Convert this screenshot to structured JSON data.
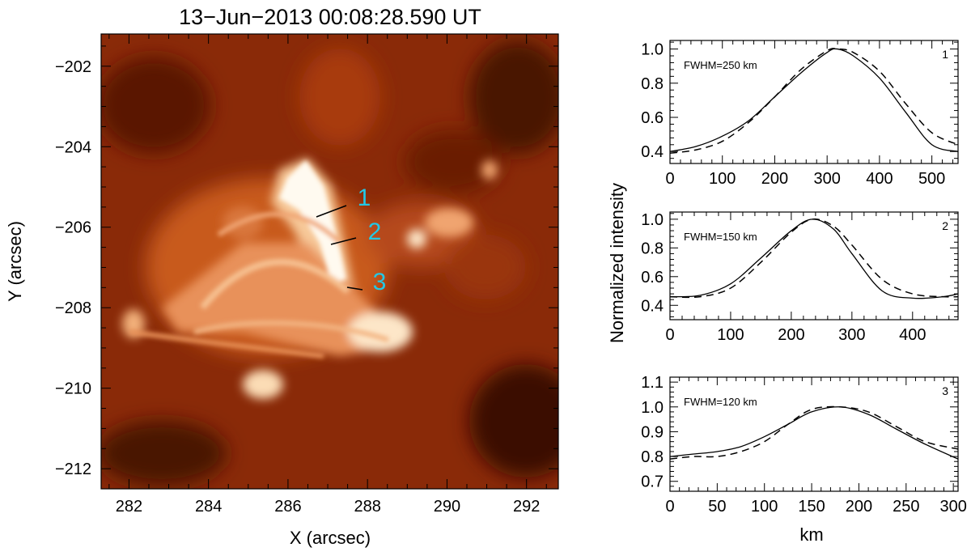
{
  "image_panel": {
    "title": "13−Jun−2013 00:08:28.590 UT",
    "xlabel": "X (arcsec)",
    "ylabel": "Y (arcsec)",
    "xlim": [
      281.3,
      292.8
    ],
    "ylim": [
      -212.5,
      -201.2
    ],
    "x_ticks": [
      "282",
      "284",
      "286",
      "288",
      "290",
      "292"
    ],
    "y_ticks": [
      "−202",
      "−204",
      "−206",
      "−208",
      "−210",
      "−212"
    ],
    "colormap": "red-temperature",
    "slit_labels": [
      "1",
      "2",
      "3"
    ],
    "slit_label_color": "#22c8e6"
  },
  "shared_ylabel": "Normalized intensity",
  "shared_xlabel": "km",
  "chart_data": [
    {
      "type": "line",
      "panel_number": "1",
      "annotation": "FWHM=250 km",
      "xlim": [
        0,
        550
      ],
      "ylim": [
        0.33,
        1.05
      ],
      "x_ticks": [
        "0",
        "100",
        "200",
        "300",
        "400",
        "500"
      ],
      "y_ticks": [
        "0.4",
        "0.6",
        "0.8",
        "1.0"
      ],
      "series": [
        {
          "style": "solid",
          "x": [
            0,
            50,
            100,
            150,
            200,
            250,
            300,
            320,
            350,
            400,
            450,
            500,
            550
          ],
          "y": [
            0.4,
            0.43,
            0.49,
            0.58,
            0.72,
            0.86,
            0.98,
            1.0,
            0.96,
            0.83,
            0.63,
            0.44,
            0.4
          ]
        },
        {
          "style": "dashed",
          "x": [
            0,
            50,
            100,
            150,
            200,
            250,
            300,
            320,
            350,
            400,
            450,
            500,
            550
          ],
          "y": [
            0.39,
            0.41,
            0.46,
            0.57,
            0.72,
            0.88,
            0.99,
            1.0,
            0.98,
            0.87,
            0.68,
            0.51,
            0.44
          ]
        }
      ]
    },
    {
      "type": "line",
      "panel_number": "2",
      "annotation": "FWHM=150 km",
      "xlim": [
        0,
        475
      ],
      "ylim": [
        0.3,
        1.05
      ],
      "x_ticks": [
        "0",
        "100",
        "200",
        "300",
        "400"
      ],
      "y_ticks": [
        "0.4",
        "0.6",
        "0.8",
        "1.0"
      ],
      "series": [
        {
          "style": "solid",
          "x": [
            0,
            50,
            100,
            150,
            200,
            235,
            270,
            300,
            350,
            400,
            450,
            475
          ],
          "y": [
            0.46,
            0.47,
            0.55,
            0.73,
            0.92,
            1.0,
            0.93,
            0.76,
            0.5,
            0.45,
            0.46,
            0.48
          ]
        },
        {
          "style": "dashed",
          "x": [
            0,
            50,
            100,
            150,
            200,
            235,
            270,
            300,
            350,
            400,
            450,
            475
          ],
          "y": [
            0.46,
            0.46,
            0.52,
            0.7,
            0.91,
            1.0,
            0.95,
            0.82,
            0.58,
            0.48,
            0.46,
            0.46
          ]
        }
      ]
    },
    {
      "type": "line",
      "panel_number": "3",
      "annotation": "FWHM=120 km",
      "xlim": [
        0,
        305
      ],
      "ylim": [
        0.66,
        1.12
      ],
      "x_ticks": [
        "0",
        "50",
        "100",
        "150",
        "200",
        "250",
        "300"
      ],
      "y_ticks": [
        "0.7",
        "0.8",
        "0.9",
        "1.0",
        "1.1"
      ],
      "series": [
        {
          "style": "solid",
          "x": [
            0,
            25,
            50,
            75,
            100,
            125,
            150,
            180,
            210,
            240,
            270,
            305
          ],
          "y": [
            0.8,
            0.81,
            0.82,
            0.84,
            0.88,
            0.93,
            0.98,
            1.0,
            0.97,
            0.91,
            0.85,
            0.79
          ]
        },
        {
          "style": "dashed",
          "x": [
            0,
            25,
            50,
            75,
            100,
            125,
            150,
            180,
            210,
            240,
            270,
            305
          ],
          "y": [
            0.79,
            0.8,
            0.8,
            0.82,
            0.86,
            0.93,
            0.99,
            1.0,
            0.98,
            0.92,
            0.86,
            0.83
          ]
        }
      ]
    }
  ]
}
